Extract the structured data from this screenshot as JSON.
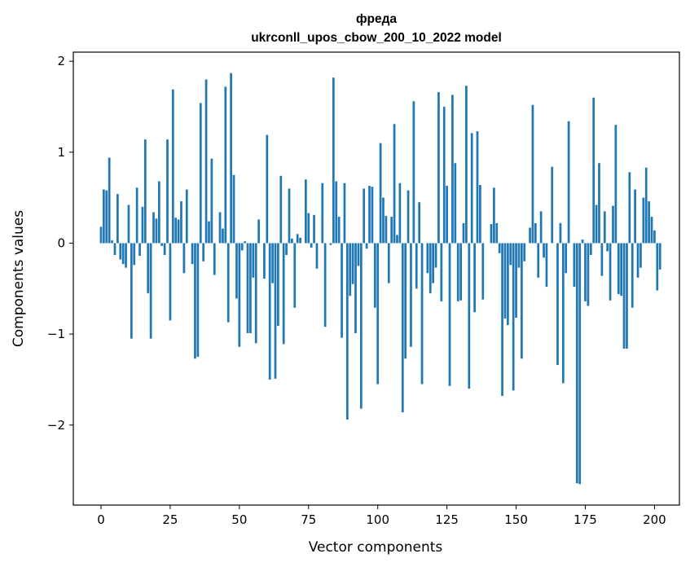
{
  "chart_data": {
    "type": "bar",
    "title_line1": "фреда",
    "title_line2": "ukrconll_upos_cbow_200_10_2022 model",
    "xlabel": "Vector components",
    "ylabel": "Components values",
    "xlim": [
      -10,
      209
    ],
    "ylim": [
      -2.88,
      2.1
    ],
    "xticks": [
      0,
      25,
      50,
      75,
      100,
      125,
      150,
      175,
      200
    ],
    "xtick_labels": [
      "0",
      "25",
      "50",
      "75",
      "100",
      "125",
      "150",
      "175",
      "200"
    ],
    "yticks": [
      -2,
      -1,
      0,
      1,
      2
    ],
    "ytick_labels": [
      "−2",
      "−1",
      "0",
      "1",
      "2"
    ],
    "bar_color": "#1f77b4",
    "grid": false,
    "values": [
      0.18,
      0.59,
      0.58,
      0.94,
      0.03,
      -0.13,
      0.54,
      -0.18,
      -0.23,
      -0.27,
      0.42,
      -1.05,
      -0.24,
      0.61,
      -0.14,
      0.4,
      1.14,
      -0.55,
      -1.05,
      0.34,
      0.27,
      0.68,
      -0.03,
      -0.13,
      1.14,
      -0.85,
      1.69,
      0.28,
      0.26,
      0.46,
      -0.33,
      0.59,
      0.0,
      -0.23,
      -1.27,
      -1.25,
      1.54,
      -0.2,
      1.8,
      0.24,
      0.93,
      -0.35,
      0.0,
      0.34,
      0.16,
      1.72,
      -0.87,
      1.87,
      0.75,
      -0.61,
      -1.14,
      -0.08,
      0.02,
      -0.99,
      -0.99,
      -0.38,
      -1.1,
      0.26,
      0.0,
      -0.39,
      1.19,
      -1.5,
      -0.44,
      -1.49,
      -0.91,
      0.74,
      -1.11,
      -0.13,
      0.6,
      0.05,
      -0.71,
      0.1,
      0.06,
      0.0,
      0.7,
      0.33,
      -0.05,
      0.31,
      -0.28,
      0.0,
      0.66,
      -0.92,
      0.0,
      -0.02,
      1.82,
      0.68,
      0.29,
      -1.04,
      0.66,
      -1.94,
      -0.58,
      -0.45,
      -0.99,
      -0.25,
      -1.82,
      0.6,
      -0.06,
      0.63,
      0.62,
      -0.71,
      -1.55,
      1.1,
      0.5,
      0.3,
      -0.44,
      0.29,
      1.31,
      0.09,
      0.66,
      -1.86,
      -1.27,
      0.58,
      -1.14,
      1.56,
      -0.5,
      0.45,
      -1.55,
      0.0,
      -0.33,
      -0.55,
      -0.44,
      -0.27,
      1.66,
      -0.64,
      1.5,
      0.63,
      -1.57,
      1.63,
      0.88,
      -0.64,
      -0.63,
      0.22,
      1.73,
      -1.6,
      1.21,
      -0.76,
      1.23,
      0.64,
      -0.62,
      0.0,
      0.0,
      0.21,
      0.61,
      0.22,
      -0.11,
      -1.68,
      -0.83,
      -0.9,
      -0.24,
      -1.62,
      -0.82,
      -0.27,
      -1.27,
      -0.2,
      0.0,
      0.17,
      1.52,
      0.22,
      -0.38,
      0.35,
      -0.16,
      -0.48,
      0.0,
      0.84,
      0.0,
      -1.34,
      0.22,
      -1.54,
      -0.33,
      1.34,
      0.0,
      -0.48,
      -2.64,
      -2.65,
      0.04,
      -0.64,
      -0.69,
      -0.13,
      1.6,
      0.42,
      0.88,
      -0.36,
      0.35,
      -0.09,
      -0.63,
      0.41,
      1.3,
      -0.56,
      -0.58,
      -1.16,
      -1.16,
      0.78,
      -0.71,
      0.59,
      -0.38,
      -0.27,
      0.5,
      0.83,
      0.46,
      0.29,
      0.14,
      -0.52,
      -0.29
    ]
  }
}
